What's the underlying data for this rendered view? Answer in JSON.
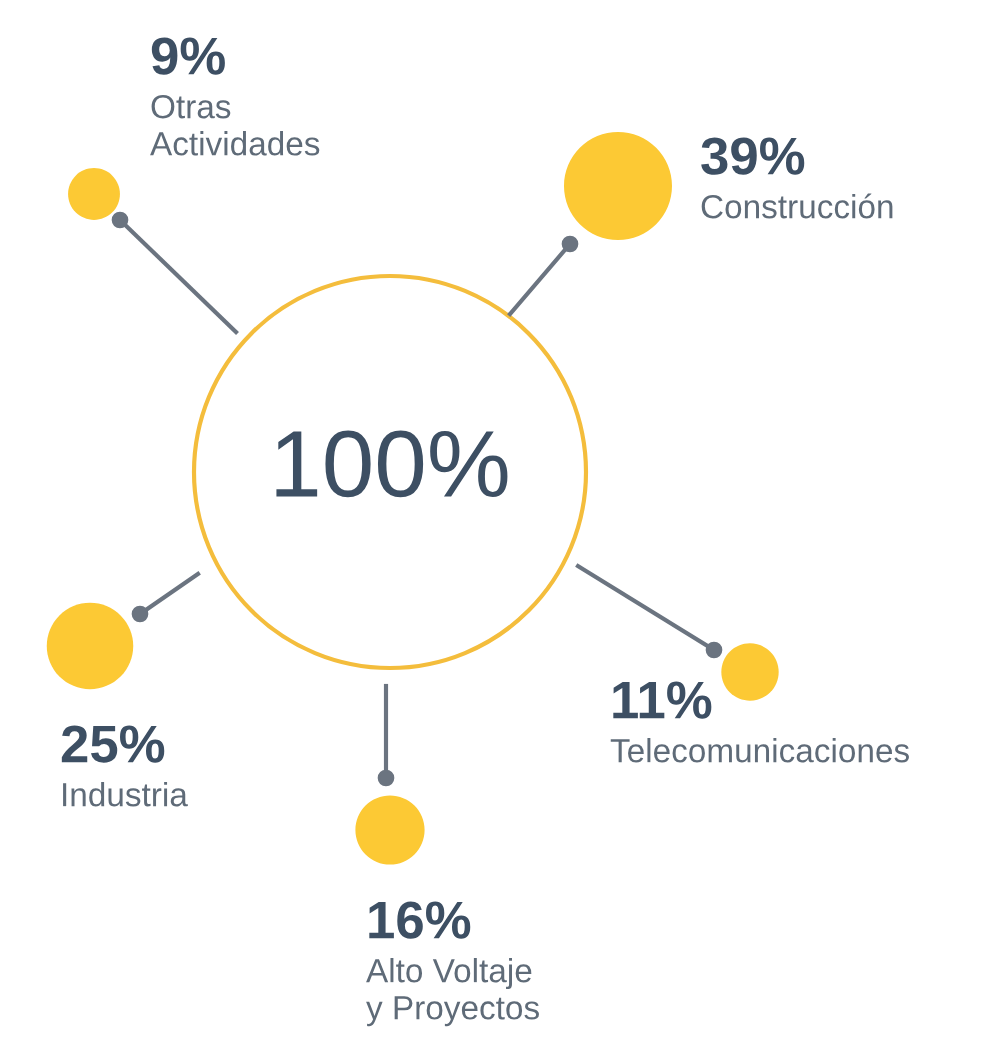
{
  "chart_data": {
    "type": "other",
    "categories": [
      "Otras\nActividades",
      "Construcción",
      "Industria",
      "Telecomunicaciones",
      "Alto Voltaje\ny Proyectos"
    ],
    "values": [
      9,
      39,
      25,
      11,
      16
    ],
    "value_labels": [
      "9%",
      "39%",
      "25%",
      "11%",
      "16%"
    ],
    "colors": [
      "#fcc934",
      "#fcc934",
      "#fcc934",
      "#fcc934",
      "#fcc934"
    ],
    "annotations": [
      "100%"
    ]
  }
}
